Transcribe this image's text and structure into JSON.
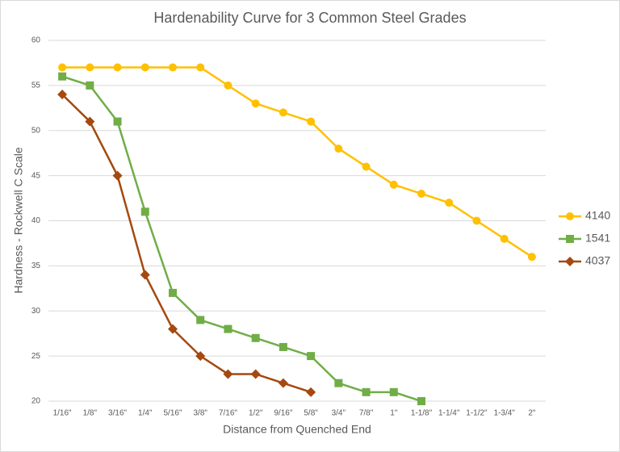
{
  "chart_data": {
    "type": "line",
    "title": "Hardenability Curve for 3 Common Steel Grades",
    "x_label": "Distance from Quenched End",
    "y_label": "Hardness - Rockwell C Scale",
    "categories": [
      "1/16\"",
      "1/8\"",
      "3/16\"",
      "1/4\"",
      "5/16\"",
      "3/8\"",
      "7/16\"",
      "1/2\"",
      "9/16\"",
      "5/8\"",
      "3/4\"",
      "7/8\"",
      "1\"",
      "1-1/8\"",
      "1-1/4\"",
      "1-1/2\"",
      "1-3/4\"",
      "2\""
    ],
    "series": [
      {
        "name": "4140",
        "color": "#ffc000",
        "marker": "circle",
        "values": [
          57,
          57,
          57,
          57,
          57,
          57,
          55,
          53,
          52,
          51,
          48,
          46,
          44,
          43,
          42,
          40,
          38,
          36
        ]
      },
      {
        "name": "1541",
        "color": "#70ad47",
        "marker": "square",
        "values": [
          56,
          55,
          51,
          41,
          32,
          29,
          28,
          27,
          26,
          25,
          22,
          21,
          21,
          20,
          null,
          null,
          null,
          null
        ]
      },
      {
        "name": "4037",
        "color": "#a5490f",
        "marker": "diamond",
        "values": [
          54,
          51,
          45,
          34,
          28,
          25,
          23,
          23,
          22,
          21,
          null,
          null,
          null,
          null,
          null,
          null,
          null,
          null
        ]
      }
    ],
    "ylim": [
      20,
      60
    ],
    "yticks": [
      20,
      25,
      30,
      35,
      40,
      45,
      50,
      55,
      60
    ],
    "grid": true,
    "legend": "right"
  }
}
